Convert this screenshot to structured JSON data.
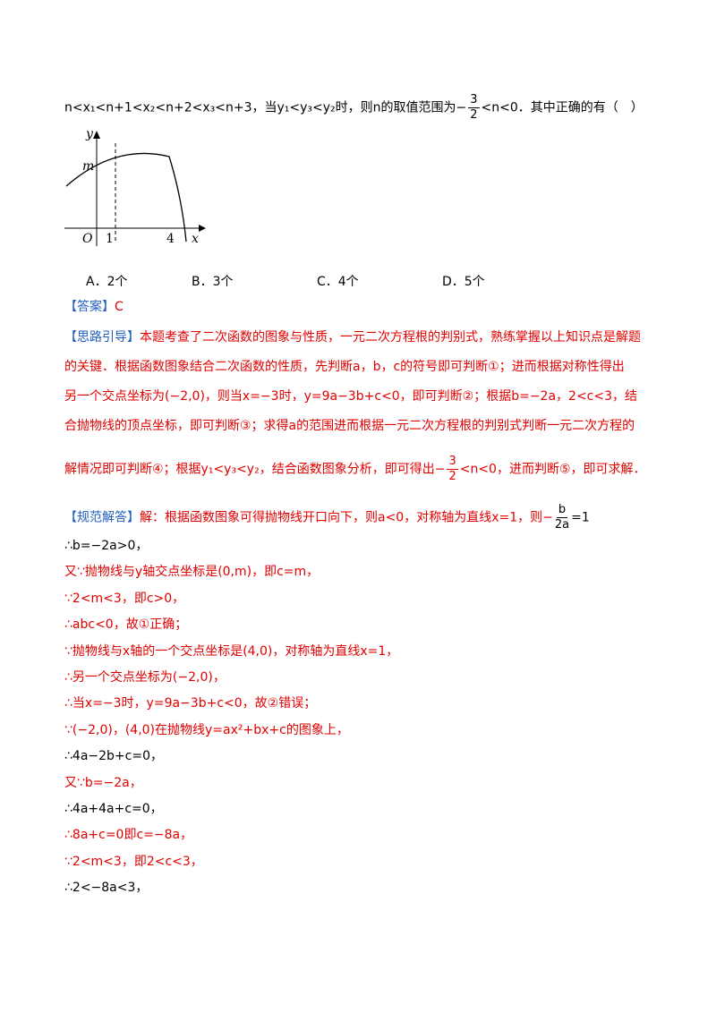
{
  "question": {
    "line": [
      "n<x₁<n+1<x₂<n+2<x₃<n+3，当y₁<y₃<y₂时，则n的取值范围为",
      "−",
      "3",
      "2",
      "<n<0．其中正确的有（　）"
    ]
  },
  "graph": {
    "y_label": "y",
    "m_label": "m",
    "origin": "O",
    "tick_1": "1",
    "tick_4": "4",
    "x_label": "x"
  },
  "options": [
    "A．2个",
    "B．3个",
    "C．4个",
    "D．5个"
  ],
  "answer": {
    "tag": "【答案】",
    "value": "C"
  },
  "analysis": {
    "tag": "【思路引导】",
    "lines": [
      "本题考查了二次函数的图象与性质，一元二次方程根的判别式，熟练掌握以上知识点是解题",
      "的关键．根据函数图象结合二次函数的性质，先判断a，b，c的符号即可判断①；进而根据对称性得出",
      "另一个交点坐标为(−2,0)，则当x=−3时，y=9a−3b+c<0，即可判断②；根据b=−2a，2<c<3，结",
      "合抛物线的顶点坐标，即可判断③；求得a的范围进而根据一元二次方程根的判别式判断一元二次方程的"
    ],
    "last_line": [
      "解情况即可判断④；根据y₁<y₃<y₂，结合函数图象分析，即可得出",
      "−",
      "3",
      "2",
      "<n<0，进而判断⑤，即可求解．"
    ]
  },
  "solution": {
    "tag": "【规范解答】",
    "first_line": [
      "解：根据函数图象可得抛物线开口向下，则a<0，对称轴为直线x=1，则−",
      "b",
      "2a",
      "=1"
    ],
    "steps": [
      "∴b=−2a>0，",
      "又∵抛物线与y轴交点坐标是(0,m)，即c=m，",
      "∵2<m<3，即c>0，",
      "∴abc<0，故①正确；",
      "∵抛物线与x轴的一个交点坐标是(4,0)，对称轴为直线x=1，",
      "∴另一个交点坐标为(−2,0)，",
      "∴当x=−3时，y=9a−3b+c<0，故②错误；",
      "∵(−2,0)，(4,0)在抛物线y=ax²+bx+c的图象上，",
      "∴4a−2b+c=0，",
      "又∵b=−2a，",
      "∴4a+4a+c=0，",
      "∴8a+c=0即c=−8a，",
      "∵2<m<3，即2<c<3，",
      "∴2<−8a<3，"
    ]
  }
}
